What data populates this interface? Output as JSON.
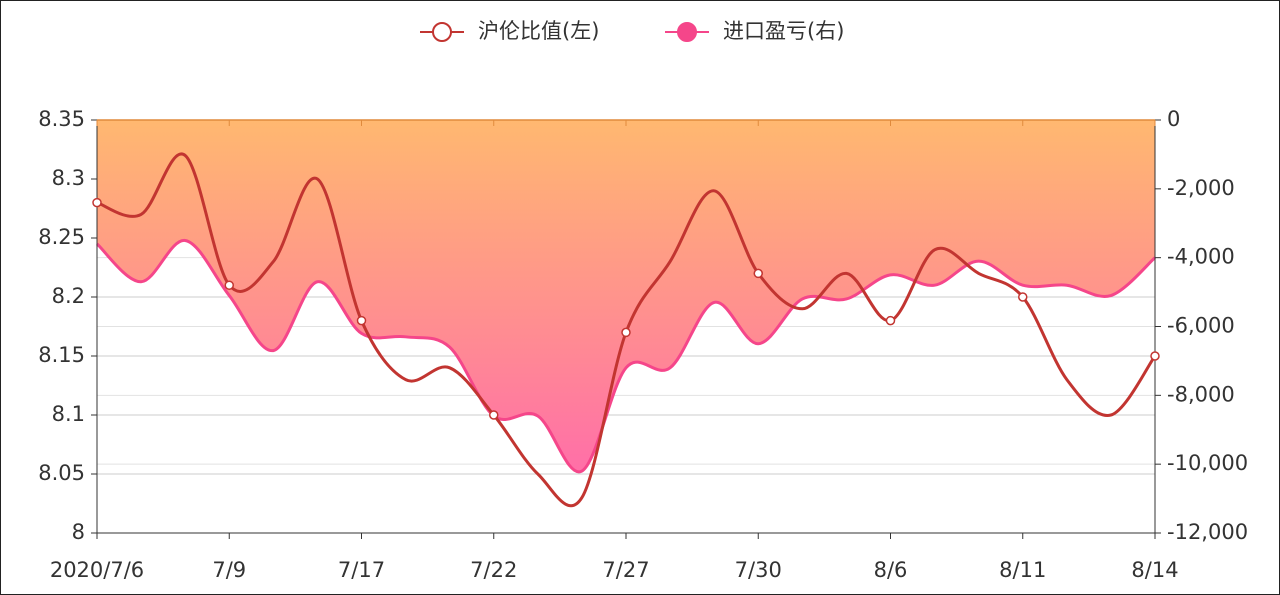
{
  "chart_data": {
    "type": "line",
    "categories": [
      "2020/7/6",
      null,
      null,
      "7/9",
      null,
      null,
      "7/17",
      null,
      null,
      "7/22",
      null,
      null,
      "7/27",
      null,
      null,
      "7/30",
      null,
      null,
      "8/6",
      null,
      null,
      "8/11",
      null,
      null,
      "8/14"
    ],
    "series": [
      {
        "name": "沪伦比值(左)",
        "color": "#c23531",
        "axis": "y",
        "values": [
          8.28,
          8.27,
          8.32,
          8.21,
          8.23,
          8.3,
          8.18,
          8.13,
          8.14,
          8.1,
          8.05,
          8.03,
          8.17,
          8.23,
          8.29,
          8.22,
          8.19,
          8.22,
          8.18,
          8.24,
          8.22,
          8.2,
          8.13,
          8.1,
          8.15
        ]
      },
      {
        "name": "进口盈亏(右)",
        "color": "#f5468a",
        "axis": "y2",
        "values": [
          -3600,
          -4700,
          -3500,
          -5100,
          -6700,
          -4700,
          -6200,
          -6300,
          -6600,
          -8600,
          -8600,
          -10200,
          -7200,
          -7200,
          -5300,
          -6500,
          -5200,
          -5200,
          -4500,
          -4800,
          -4100,
          -4800,
          -4800,
          -5100,
          -4000
        ]
      }
    ],
    "ylim": [
      8,
      8.35
    ],
    "yticks": [
      8,
      8.05,
      8.1,
      8.15,
      8.2,
      8.25,
      8.3,
      8.35
    ],
    "y2lim": [
      -12000,
      0
    ],
    "y2ticks": [
      {
        "value": -12000,
        "label": "-12,000"
      },
      {
        "value": -10000,
        "label": "-10,000"
      },
      {
        "value": -8000,
        "label": "-8,000"
      },
      {
        "value": -6000,
        "label": "-6,000"
      },
      {
        "value": -4000,
        "label": "-4,000"
      },
      {
        "value": -2000,
        "label": "-2,000"
      },
      0
    ],
    "grid": true,
    "legend": "top"
  }
}
